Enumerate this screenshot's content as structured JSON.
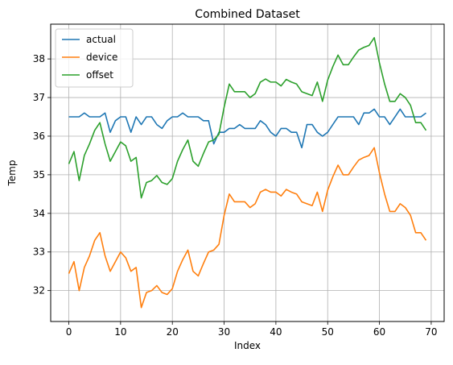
{
  "chart_data": {
    "type": "line",
    "title": "Combined Dataset",
    "xlabel": "Index",
    "ylabel": "Temp",
    "xlim": [
      -3.5,
      72.5
    ],
    "ylim": [
      31.2,
      38.9
    ],
    "xticks": [
      0,
      10,
      20,
      30,
      40,
      50,
      60,
      70
    ],
    "yticks": [
      32,
      33,
      34,
      35,
      36,
      37,
      38
    ],
    "grid": true,
    "legend": "top-left",
    "x": [
      0,
      1,
      2,
      3,
      4,
      5,
      6,
      7,
      8,
      9,
      10,
      11,
      12,
      13,
      14,
      15,
      16,
      17,
      18,
      19,
      20,
      21,
      22,
      23,
      24,
      25,
      26,
      27,
      28,
      29,
      30,
      31,
      32,
      33,
      34,
      35,
      36,
      37,
      38,
      39,
      40,
      41,
      42,
      43,
      44,
      45,
      46,
      47,
      48,
      49,
      50,
      51,
      52,
      53,
      54,
      55,
      56,
      57,
      58,
      59,
      60,
      61,
      62,
      63,
      64,
      65,
      66,
      67,
      68,
      69
    ],
    "series": [
      {
        "name": "actual",
        "color": "#1f77b4",
        "values": [
          36.5,
          36.5,
          36.5,
          36.6,
          36.5,
          36.5,
          36.5,
          36.6,
          36.1,
          36.4,
          36.5,
          36.5,
          36.1,
          36.5,
          36.3,
          36.5,
          36.5,
          36.3,
          36.2,
          36.4,
          36.5,
          36.5,
          36.6,
          36.5,
          36.5,
          36.5,
          36.4,
          36.4,
          35.8,
          36.1,
          36.1,
          36.2,
          36.2,
          36.3,
          36.2,
          36.2,
          36.2,
          36.4,
          36.3,
          36.1,
          36.0,
          36.2,
          36.2,
          36.1,
          36.1,
          35.7,
          36.3,
          36.3,
          36.1,
          36.0,
          36.1,
          36.3,
          36.5,
          36.5,
          36.5,
          36.5,
          36.3,
          36.6,
          36.6,
          36.7,
          36.5,
          36.5,
          36.3,
          36.5,
          36.7,
          36.5,
          36.5,
          36.5,
          36.5,
          36.6
        ]
      },
      {
        "name": "device",
        "color": "#ff7f0e",
        "values": [
          32.44,
          32.75,
          32.0,
          32.6,
          32.9,
          33.3,
          33.5,
          32.9,
          32.5,
          32.75,
          33.0,
          32.85,
          32.5,
          32.6,
          31.56,
          31.95,
          32.0,
          32.13,
          31.95,
          31.9,
          32.05,
          32.5,
          32.8,
          33.05,
          32.5,
          32.38,
          32.7,
          33.0,
          33.05,
          33.2,
          33.95,
          34.5,
          34.3,
          34.3,
          34.3,
          34.15,
          34.25,
          34.55,
          34.62,
          34.55,
          34.55,
          34.45,
          34.62,
          34.55,
          34.5,
          34.3,
          34.25,
          34.2,
          34.55,
          34.05,
          34.6,
          34.95,
          35.25,
          35.0,
          35.0,
          35.2,
          35.38,
          35.45,
          35.5,
          35.7,
          35.05,
          34.5,
          34.05,
          34.05,
          34.25,
          34.15,
          33.95,
          33.5,
          33.5,
          33.3
        ]
      },
      {
        "name": "offset",
        "color": "#2ca02c",
        "values": [
          35.28,
          35.6,
          34.85,
          35.5,
          35.8,
          36.15,
          36.35,
          35.8,
          35.35,
          35.6,
          35.85,
          35.75,
          35.35,
          35.45,
          34.4,
          34.8,
          34.85,
          34.98,
          34.8,
          34.75,
          34.9,
          35.35,
          35.65,
          35.9,
          35.35,
          35.22,
          35.55,
          35.85,
          35.9,
          36.05,
          36.75,
          37.35,
          37.15,
          37.15,
          37.15,
          37.0,
          37.1,
          37.4,
          37.48,
          37.4,
          37.4,
          37.3,
          37.47,
          37.4,
          37.35,
          37.15,
          37.1,
          37.05,
          37.4,
          36.9,
          37.45,
          37.8,
          38.1,
          37.85,
          37.85,
          38.05,
          38.23,
          38.3,
          38.35,
          38.55,
          37.9,
          37.35,
          36.9,
          36.9,
          37.1,
          37.0,
          36.8,
          36.35,
          36.35,
          36.15
        ]
      }
    ]
  }
}
